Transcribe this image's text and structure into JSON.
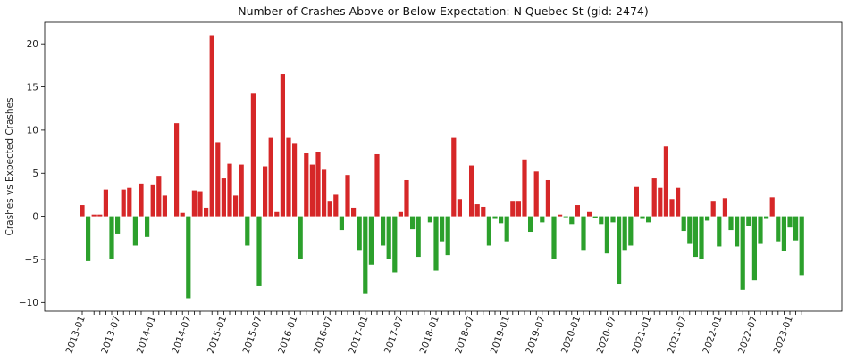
{
  "chart_data": {
    "type": "bar",
    "title": "Number of Crashes Above or Below Expectation: N Quebec St (gid: 2474)",
    "xlabel": "",
    "ylabel": "Crashes vs Expected Crashes",
    "ylim": [
      -11,
      22.5
    ],
    "yticks": [
      -10,
      -5,
      0,
      5,
      10,
      15,
      20
    ],
    "start_month": "2013-01",
    "xtick_labels": [
      "2013-01",
      "2013-07",
      "2014-01",
      "2014-07",
      "2015-01",
      "2015-07",
      "2016-01",
      "2016-07",
      "2017-01",
      "2017-07",
      "2018-01",
      "2018-07",
      "2019-01",
      "2019-07",
      "2020-01",
      "2020-07",
      "2021-01",
      "2021-07",
      "2022-01",
      "2022-07",
      "2023-01"
    ],
    "positive_color": "#d62728",
    "negative_color": "#2ca02c",
    "values": [
      1.3,
      -5.2,
      0.2,
      0.2,
      3.1,
      -5.0,
      -2.0,
      3.1,
      3.3,
      -3.4,
      3.8,
      -2.4,
      3.7,
      4.7,
      2.4,
      0.0,
      10.8,
      0.4,
      -9.5,
      3.0,
      2.9,
      1.0,
      21.0,
      8.6,
      4.4,
      6.1,
      2.4,
      6.0,
      -3.4,
      14.3,
      -8.1,
      5.8,
      9.1,
      0.5,
      16.5,
      9.1,
      8.5,
      -5.0,
      7.3,
      6.0,
      7.5,
      5.4,
      1.8,
      2.5,
      -1.6,
      4.8,
      1.0,
      -3.9,
      -9.0,
      -5.6,
      7.2,
      -3.4,
      -5.0,
      -6.5,
      0.5,
      4.2,
      -1.5,
      -4.7,
      0.0,
      -0.7,
      -6.3,
      -2.9,
      -4.5,
      9.1,
      2.0,
      0.0,
      5.9,
      1.4,
      1.1,
      -3.4,
      -0.3,
      -0.8,
      -2.9,
      1.8,
      1.8,
      6.6,
      -1.8,
      5.2,
      -0.7,
      4.2,
      -5.0,
      0.2,
      -0.1,
      -0.9,
      1.3,
      -3.9,
      0.5,
      -0.2,
      -0.9,
      -4.3,
      -0.7,
      -7.9,
      -3.9,
      -3.4,
      3.4,
      -0.3,
      -0.7,
      4.4,
      3.3,
      8.1,
      2.0,
      3.3,
      -1.7,
      -3.2,
      -4.7,
      -4.9,
      -0.5,
      1.8,
      -3.5,
      2.1,
      -1.6,
      -3.5,
      -8.5,
      -1.1,
      -7.4,
      -3.2,
      -0.3,
      2.2,
      -2.9,
      -4.0,
      -1.3,
      -2.8,
      -6.8
    ]
  }
}
